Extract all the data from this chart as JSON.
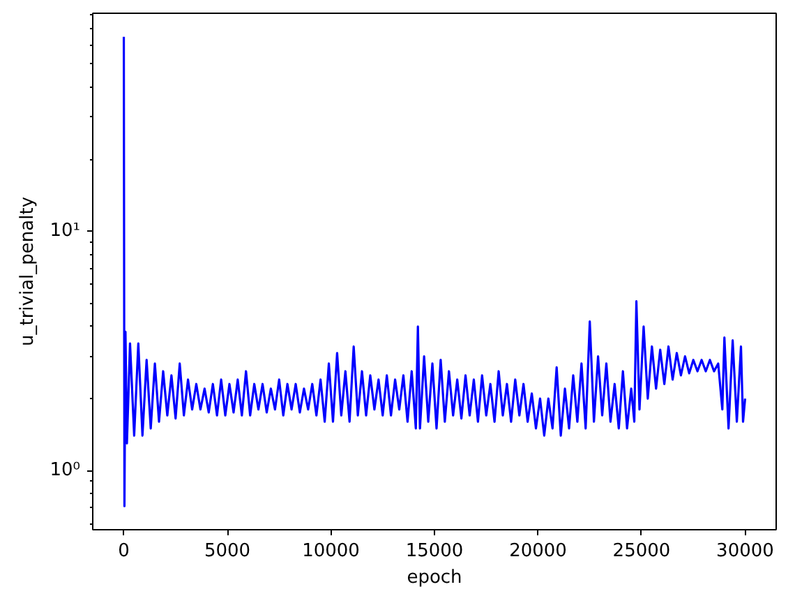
{
  "chart_data": {
    "type": "line",
    "xlabel": "epoch",
    "ylabel": "u_trivial_penalty",
    "log": "y",
    "grid": false,
    "marker": "none",
    "line_style": "solid",
    "xlim": [
      -1500,
      31500
    ],
    "xticks": [
      0,
      5000,
      10000,
      15000,
      20000,
      25000,
      30000
    ],
    "ylim": [
      0.566,
      81.5
    ],
    "yticks": [
      {
        "value": 0.6,
        "label": null
      },
      {
        "value": 0.7,
        "label": null
      },
      {
        "value": 0.8,
        "label": null
      },
      {
        "value": 0.9,
        "label": null
      },
      {
        "value": 1,
        "label": "10⁰"
      },
      {
        "value": 2,
        "label": null
      },
      {
        "value": 3,
        "label": null
      },
      {
        "value": 4,
        "label": null
      },
      {
        "value": 5,
        "label": null
      },
      {
        "value": 6,
        "label": null
      },
      {
        "value": 7,
        "label": null
      },
      {
        "value": 8,
        "label": null
      },
      {
        "value": 9,
        "label": null
      },
      {
        "value": 10,
        "label": "10¹"
      },
      {
        "value": 20,
        "label": null
      },
      {
        "value": 30,
        "label": null
      },
      {
        "value": 40,
        "label": null
      },
      {
        "value": 50,
        "label": null
      },
      {
        "value": 60,
        "label": null
      },
      {
        "value": 70,
        "label": null
      },
      {
        "value": 80,
        "label": null
      }
    ],
    "series": [
      {
        "color": "#0000ff",
        "x": [
          0,
          30,
          80,
          150,
          300,
          500,
          700,
          900,
          1100,
          1300,
          1500,
          1700,
          1900,
          2100,
          2300,
          2500,
          2700,
          2900,
          3100,
          3300,
          3500,
          3700,
          3900,
          4100,
          4300,
          4500,
          4700,
          4900,
          5100,
          5300,
          5500,
          5700,
          5900,
          6100,
          6300,
          6500,
          6700,
          6900,
          7100,
          7300,
          7500,
          7700,
          7900,
          8100,
          8300,
          8500,
          8700,
          8900,
          9100,
          9300,
          9500,
          9700,
          9900,
          10100,
          10300,
          10500,
          10700,
          10900,
          11100,
          11300,
          11500,
          11700,
          11900,
          12100,
          12300,
          12500,
          12700,
          12900,
          13100,
          13300,
          13500,
          13700,
          13900,
          14100,
          14200,
          14300,
          14500,
          14700,
          14900,
          15100,
          15300,
          15500,
          15700,
          15900,
          16100,
          16300,
          16500,
          16700,
          16900,
          17100,
          17300,
          17500,
          17700,
          17900,
          18100,
          18300,
          18500,
          18700,
          18900,
          19100,
          19300,
          19500,
          19700,
          19900,
          20100,
          20300,
          20500,
          20700,
          20900,
          21100,
          21300,
          21500,
          21700,
          21900,
          22100,
          22300,
          22500,
          22700,
          22900,
          23100,
          23300,
          23500,
          23700,
          23900,
          24100,
          24300,
          24500,
          24650,
          24750,
          24900,
          25100,
          25300,
          25500,
          25700,
          25900,
          26100,
          26300,
          26500,
          26700,
          26900,
          27100,
          27300,
          27500,
          27700,
          27900,
          28100,
          28300,
          28500,
          28700,
          28900,
          29000,
          29200,
          29400,
          29600,
          29800,
          29900,
          30000
        ],
        "values": [
          65,
          0.71,
          3.8,
          1.3,
          3.4,
          1.4,
          3.4,
          1.4,
          2.9,
          1.5,
          2.8,
          1.6,
          2.6,
          1.7,
          2.5,
          1.65,
          2.8,
          1.7,
          2.4,
          1.8,
          2.3,
          1.8,
          2.2,
          1.75,
          2.3,
          1.7,
          2.4,
          1.7,
          2.3,
          1.75,
          2.4,
          1.7,
          2.6,
          1.7,
          2.3,
          1.8,
          2.3,
          1.75,
          2.2,
          1.8,
          2.4,
          1.7,
          2.3,
          1.8,
          2.3,
          1.75,
          2.2,
          1.8,
          2.3,
          1.7,
          2.4,
          1.6,
          2.8,
          1.6,
          3.1,
          1.7,
          2.6,
          1.6,
          3.3,
          1.7,
          2.6,
          1.7,
          2.5,
          1.8,
          2.4,
          1.7,
          2.5,
          1.7,
          2.4,
          1.8,
          2.5,
          1.6,
          2.6,
          1.5,
          4.0,
          1.5,
          3.0,
          1.6,
          2.8,
          1.5,
          2.9,
          1.6,
          2.6,
          1.7,
          2.4,
          1.65,
          2.5,
          1.7,
          2.4,
          1.6,
          2.5,
          1.7,
          2.3,
          1.6,
          2.6,
          1.7,
          2.3,
          1.6,
          2.4,
          1.7,
          2.3,
          1.6,
          2.1,
          1.5,
          2.0,
          1.4,
          2.0,
          1.5,
          2.7,
          1.4,
          2.2,
          1.5,
          2.5,
          1.6,
          2.8,
          1.5,
          4.2,
          1.6,
          3.0,
          1.7,
          2.8,
          1.6,
          2.3,
          1.5,
          2.6,
          1.5,
          2.2,
          1.6,
          5.1,
          1.8,
          4.0,
          2.0,
          3.3,
          2.2,
          3.2,
          2.3,
          3.3,
          2.4,
          3.1,
          2.5,
          3.0,
          2.55,
          2.9,
          2.6,
          2.9,
          2.6,
          2.9,
          2.6,
          2.8,
          1.8,
          3.6,
          1.5,
          3.5,
          1.6,
          3.3,
          1.6,
          2.0
        ]
      }
    ]
  }
}
